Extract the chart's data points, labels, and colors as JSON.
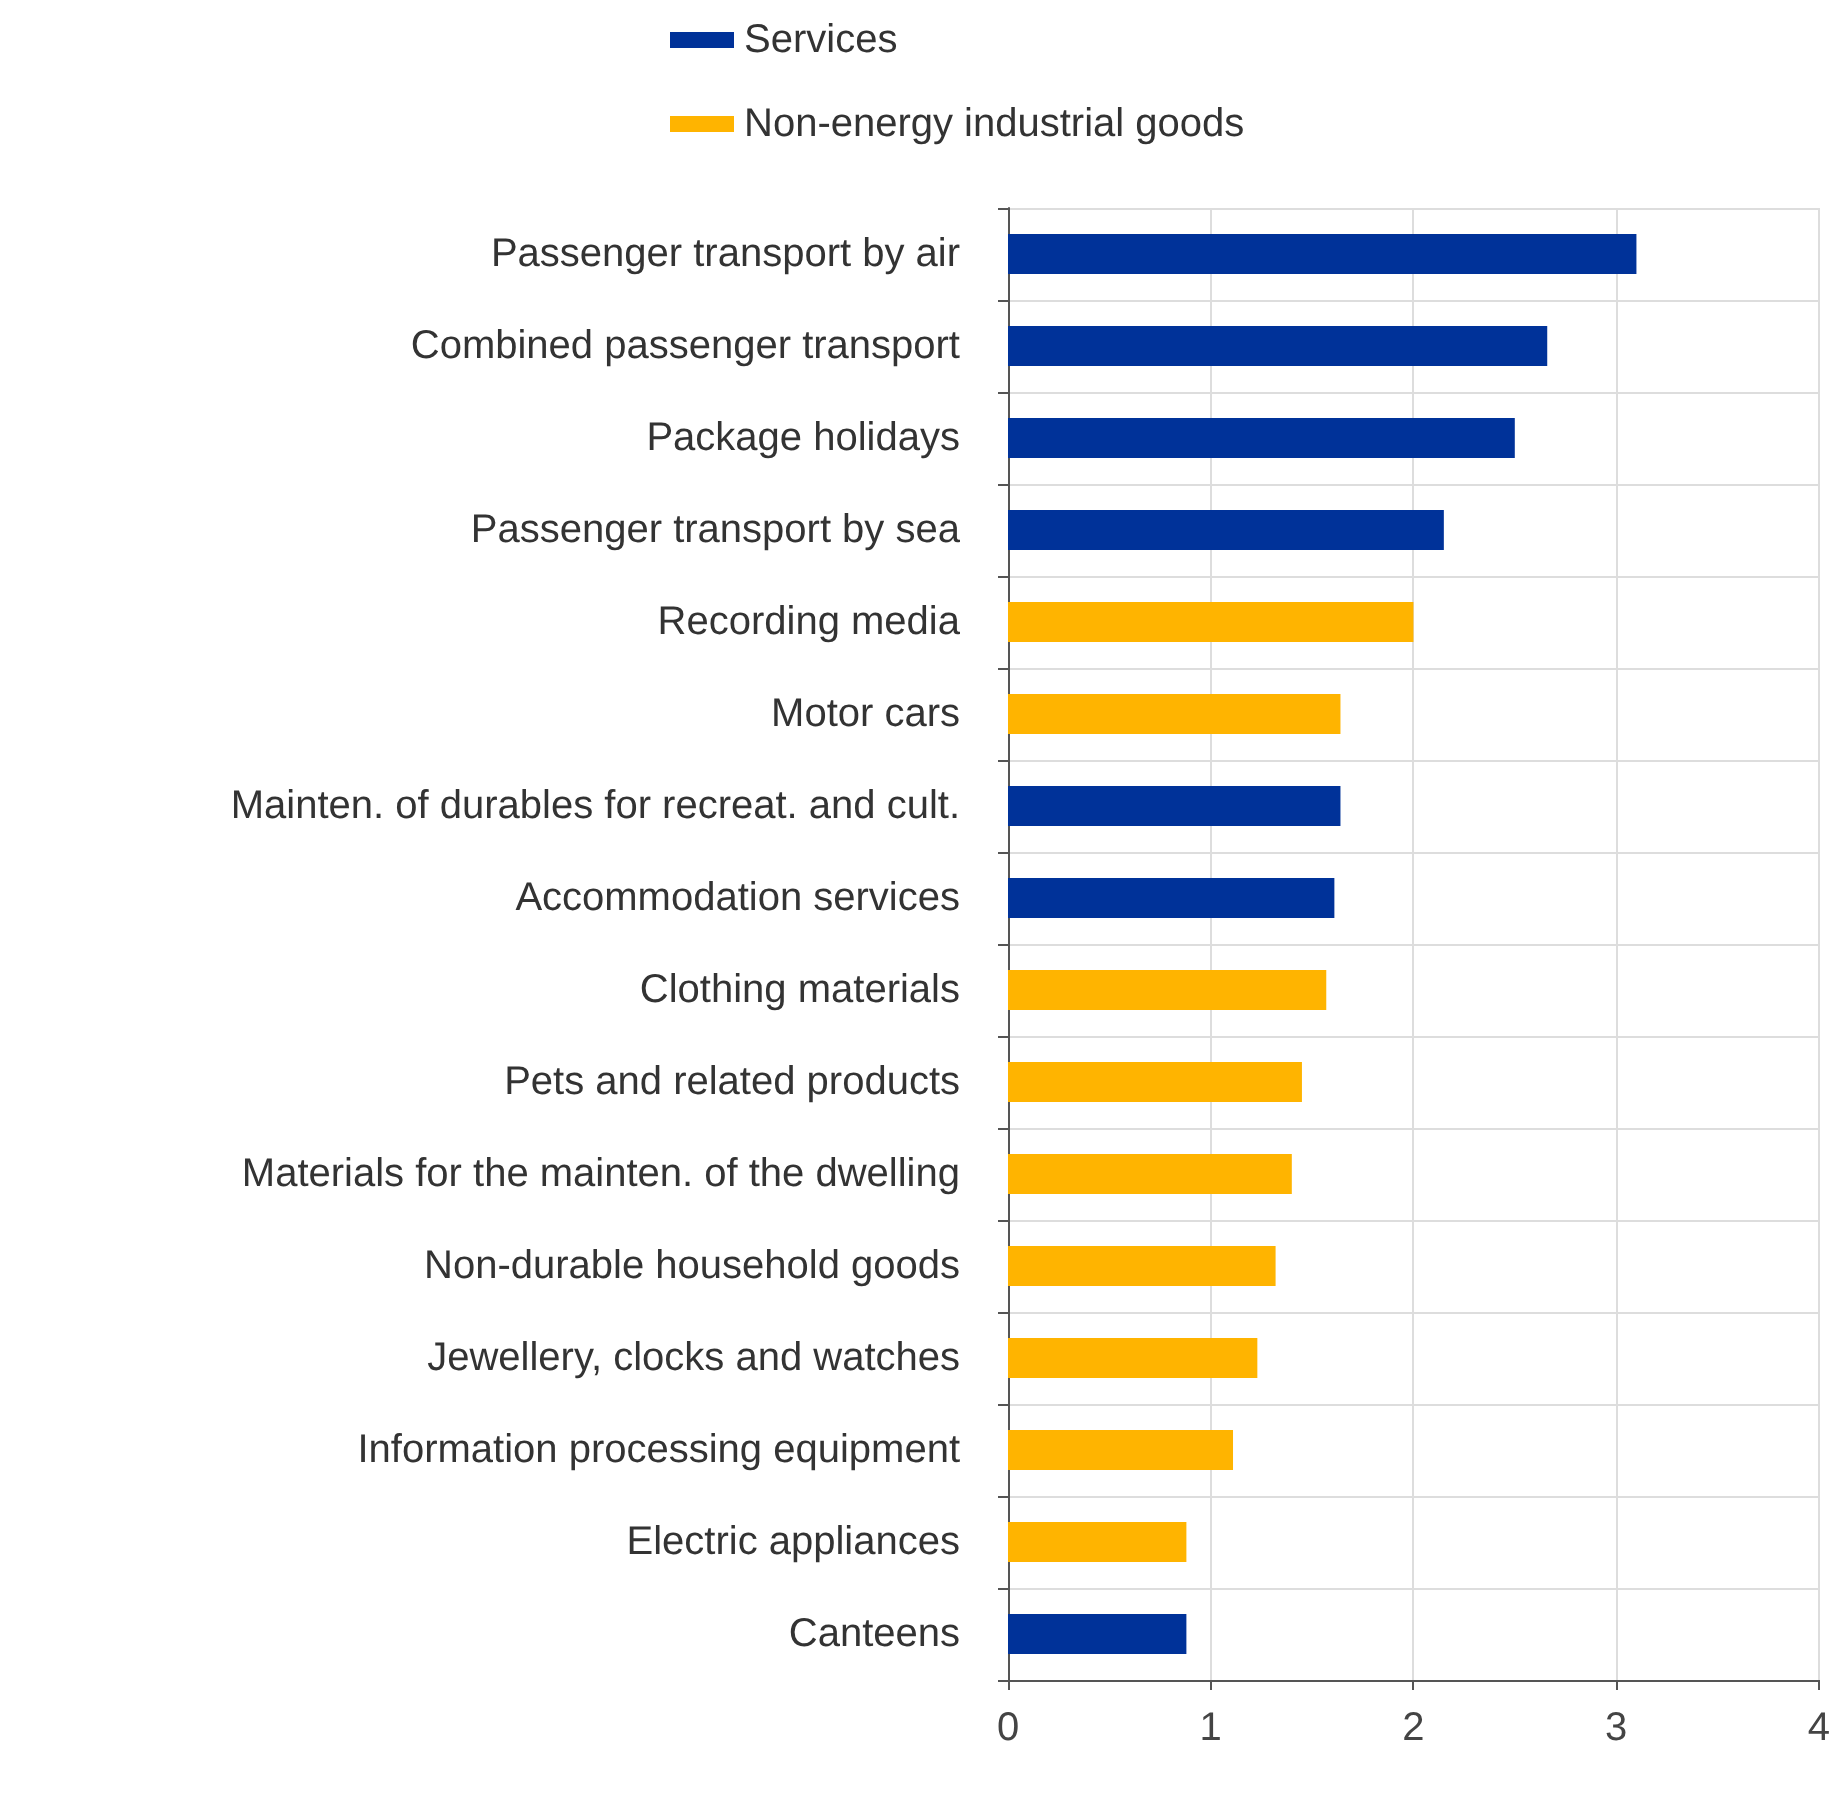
{
  "chart_data": {
    "type": "bar",
    "orientation": "horizontal",
    "categories": [
      "Passenger transport by air",
      "Combined passenger transport",
      "Package holidays",
      "Passenger transport by sea",
      "Recording media",
      "Motor cars",
      "Mainten. of durables for recreat. and cult.",
      "Accommodation services",
      "Clothing materials",
      "Pets and related products",
      "Materials for the mainten. of the dwelling",
      "Non-durable household goods",
      "Jewellery, clocks and watches",
      "Information processing equipment",
      "Electric appliances",
      "Canteens"
    ],
    "series": [
      {
        "name": "Services",
        "color": "#003299",
        "values": [
          3.1,
          2.66,
          2.5,
          2.15,
          null,
          null,
          1.64,
          1.61,
          null,
          null,
          null,
          null,
          null,
          null,
          null,
          0.88
        ]
      },
      {
        "name": "Non-energy industrial goods",
        "color": "#ffb400",
        "values": [
          null,
          null,
          null,
          null,
          2.0,
          1.64,
          null,
          null,
          1.57,
          1.45,
          1.4,
          1.32,
          1.23,
          1.11,
          0.88,
          null
        ]
      }
    ],
    "xlim": [
      0,
      4
    ],
    "xticks": [
      0,
      1,
      2,
      3,
      4
    ],
    "grid": true,
    "legend": "top"
  }
}
